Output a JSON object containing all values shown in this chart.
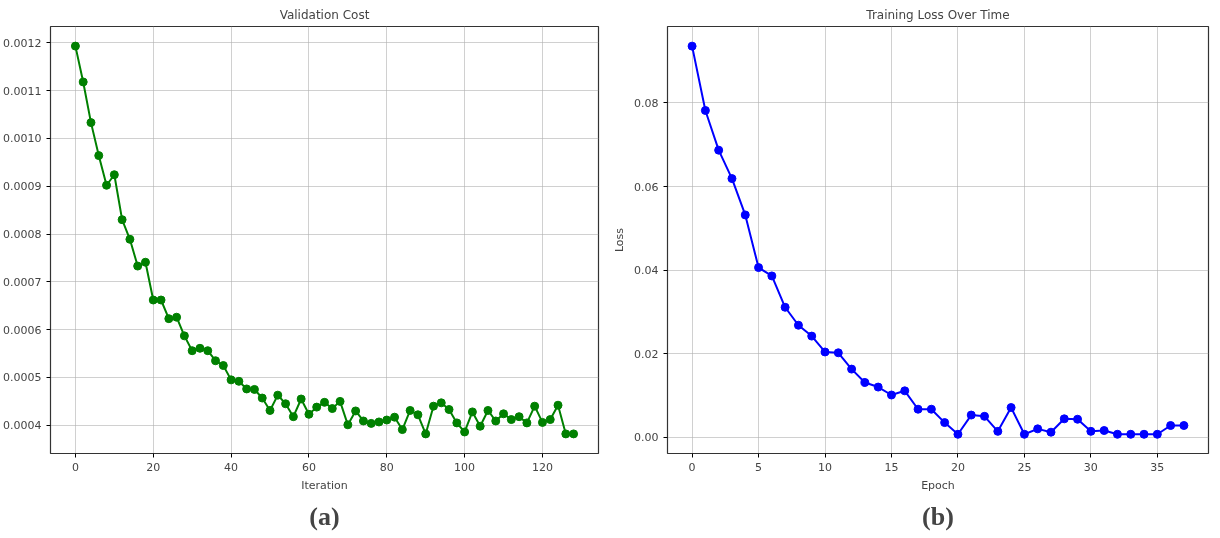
{
  "chart_data": [
    {
      "type": "line",
      "title": "Validation Cost",
      "xlabel": "Iteration",
      "annotations": [
        "(a)"
      ],
      "x": [
        0,
        2,
        4,
        6,
        8,
        10,
        12,
        14,
        16,
        18,
        20,
        22,
        24,
        26,
        28,
        30,
        32,
        34,
        36,
        38,
        40,
        42,
        44,
        46,
        48,
        50,
        52,
        54,
        56,
        58,
        60,
        62,
        64,
        66,
        68,
        70,
        72,
        74,
        76,
        78,
        80,
        82,
        84,
        86,
        88,
        90,
        92,
        94,
        96,
        98,
        100,
        102,
        104,
        106,
        108,
        110,
        112,
        114,
        116,
        118,
        120,
        122,
        124,
        126,
        128
      ],
      "series": [
        {
          "color": "#008000",
          "values": [
            0.001193,
            0.001118,
            0.001033,
            0.000964,
            0.000902,
            0.000924,
            0.00083,
            0.000789,
            0.000733,
            0.000741,
            0.000662,
            0.000662,
            0.000623,
            0.000626,
            0.000587,
            0.000556,
            0.000561,
            0.000556,
            0.000535,
            0.000525,
            0.000495,
            0.000492,
            0.000476,
            0.000475,
            0.000457,
            0.000431,
            0.000463,
            0.000445,
            0.000418,
            0.000455,
            0.000423,
            0.000438,
            0.000448,
            0.000435,
            0.00045,
            0.000401,
            0.00043,
            0.000409,
            0.000404,
            0.000407,
            0.000411,
            0.000417,
            0.000391,
            0.000431,
            0.000422,
            0.000382,
            0.00044,
            0.000447,
            0.000433,
            0.000405,
            0.000386,
            0.000428,
            0.000398,
            0.000431,
            0.000409,
            0.000424,
            0.000412,
            0.000418,
            0.000405,
            0.00044,
            0.000406,
            0.000412,
            0.000442,
            0.000382,
            0.000382
          ]
        }
      ],
      "xlim": [
        -6.4,
        134.4
      ],
      "ylim": [
        0.000341,
        0.001234
      ],
      "xticks": [
        0,
        20,
        40,
        60,
        80,
        100,
        120
      ],
      "yticks": [
        0.0004,
        0.0005,
        0.0006,
        0.0007,
        0.0008,
        0.0009,
        {
          "value": 0.001,
          "label": "0.0010"
        },
        0.0011,
        0.0012
      ],
      "grid": true,
      "marker": "circle",
      "line_style": "solid"
    },
    {
      "type": "line",
      "title": "Training Loss Over Time",
      "xlabel": "Epoch",
      "ylabel": "Loss",
      "annotations": [
        "(b)"
      ],
      "x": [
        0,
        1,
        2,
        3,
        4,
        5,
        6,
        7,
        8,
        9,
        10,
        11,
        12,
        13,
        14,
        15,
        16,
        17,
        18,
        19,
        20,
        21,
        22,
        23,
        24,
        25,
        26,
        27,
        28,
        29,
        30,
        31,
        32,
        33,
        34,
        35,
        36,
        37
      ],
      "series": [
        {
          "color": "#0000ff",
          "values": [
            0.0936,
            0.0782,
            0.0687,
            0.0619,
            0.0532,
            0.0406,
            0.0386,
            0.0311,
            0.0268,
            0.0242,
            0.0204,
            0.0202,
            0.0163,
            0.0131,
            0.012,
            0.0101,
            0.0111,
            0.0067,
            0.0067,
            0.0035,
            0.0007,
            0.0053,
            0.005,
            0.0014,
            0.0071,
            0.0007,
            0.002,
            0.0012,
            0.0044,
            0.0043,
            0.0014,
            0.0016,
            0.0007,
            0.0007,
            0.0007,
            0.0007,
            0.0028,
            0.0028
          ]
        }
      ],
      "xlim": [
        -1.85,
        38.85
      ],
      "ylim": [
        -0.0039,
        0.0983
      ],
      "xticks": [
        0,
        5,
        10,
        15,
        20,
        25,
        30,
        35
      ],
      "yticks": [
        {
          "value": 0,
          "label": "0.00"
        },
        {
          "value": 0.02,
          "label": "0.02"
        },
        {
          "value": 0.04,
          "label": "0.04"
        },
        {
          "value": 0.06,
          "label": "0.06"
        },
        {
          "value": 0.08,
          "label": "0.08"
        }
      ],
      "grid": true,
      "marker": "circle",
      "line_style": "solid"
    }
  ]
}
